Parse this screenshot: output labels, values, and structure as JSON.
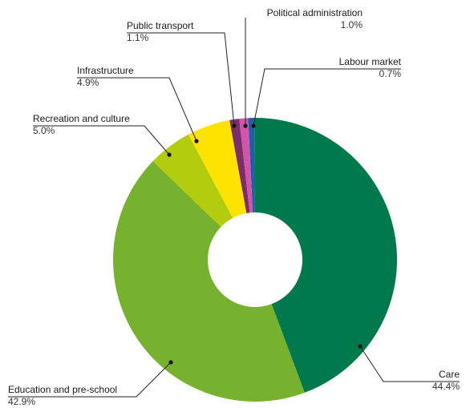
{
  "chart_data": {
    "type": "pie",
    "donut": true,
    "slices": [
      {
        "label": "Labour market",
        "value": 0.7,
        "display": "0.7%",
        "color": "#1f5fa8"
      },
      {
        "label": "Care",
        "value": 44.4,
        "display": "44.4%",
        "color": "#007a4d"
      },
      {
        "label": "Education and pre-school",
        "value": 42.9,
        "display": "42.9%",
        "color": "#76b22e"
      },
      {
        "label": "Recreation and culture",
        "value": 5.0,
        "display": "5.0%",
        "color": "#b4cc0e"
      },
      {
        "label": "Infrastructure",
        "value": 4.9,
        "display": "4.9%",
        "color": "#ffe300"
      },
      {
        "label": "Public transport",
        "value": 1.1,
        "display": "1.1%",
        "color": "#7b2d6e"
      },
      {
        "label": "Political administration",
        "value": 1.0,
        "display": "1.0%",
        "color": "#d455a8"
      }
    ]
  }
}
